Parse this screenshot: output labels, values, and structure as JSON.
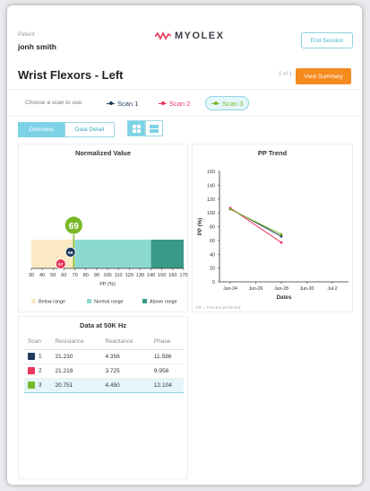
{
  "header": {
    "patient_label": "Patient",
    "patient_name": "jonh smith",
    "logo_text": "MYOLEX",
    "end_session": "End Session"
  },
  "title_row": {
    "title": "Wrist Flexors - Left",
    "pager": "1 of 1",
    "view_summary": "View Summary"
  },
  "scan_select": {
    "prompt": "Choose a scan to use:",
    "scans": [
      {
        "label": "Scan 1",
        "color": "#1f3a5f"
      },
      {
        "label": "Scan 2",
        "color": "#e8365a"
      },
      {
        "label": "Scan 3",
        "color": "#7ab829"
      }
    ],
    "selected": "Scan 3"
  },
  "tabs": {
    "overview": "Overview",
    "data_detail": "Data Detail",
    "active": "Overview"
  },
  "layout_toggle": {
    "grid_icon": "grid-icon",
    "list_icon": "list-icon",
    "active": "grid"
  },
  "colors": {
    "accent": "#7dd3e5",
    "orange": "#f58a1f",
    "below": "#fbe9c4",
    "normal": "#8bd9d0",
    "above": "#3a9a88"
  },
  "chart_data": [
    {
      "type": "bar",
      "title": "Normalized Value",
      "xlabel": "PP (%)",
      "xlim": [
        30,
        170
      ],
      "xticks": [
        30,
        40,
        50,
        60,
        70,
        80,
        90,
        100,
        110,
        120,
        130,
        140,
        150,
        160,
        170
      ],
      "ranges": [
        {
          "name": "Below range",
          "from": 30,
          "to": 70,
          "color": "#fbe9c4"
        },
        {
          "name": "Normal range",
          "from": 70,
          "to": 140,
          "color": "#8bd9d0"
        },
        {
          "name": "Above range",
          "from": 140,
          "to": 170,
          "color": "#3a9a88"
        }
      ],
      "markers": [
        {
          "scan": "Scan 1",
          "value": 66,
          "label": "66",
          "color": "#1f3a5f"
        },
        {
          "scan": "Scan 2",
          "value": 57,
          "label": "57",
          "color": "#e8365a"
        },
        {
          "scan": "Scan 3",
          "value": 69,
          "label": "69",
          "color": "#7ab829"
        }
      ],
      "legend": [
        "Below range",
        "Normal range",
        "Above range"
      ],
      "legend_position": "bottom"
    },
    {
      "type": "line",
      "title": "PP Trend",
      "xlabel": "Dates",
      "ylabel": "PP (%)",
      "ylim": [
        0,
        160
      ],
      "yticks": [
        0,
        20,
        40,
        60,
        80,
        100,
        120,
        140,
        160
      ],
      "xticks": [
        "Jun-24",
        "Jun-26",
        "Jun-28",
        "Jun-30",
        "Jul-2"
      ],
      "series": [
        {
          "name": "Scan 1",
          "color": "#1f3a5f",
          "x": [
            "Jun-24",
            "Jun-28"
          ],
          "y": [
            106,
            66
          ]
        },
        {
          "name": "Scan 2",
          "color": "#e8365a",
          "x": [
            "Jun-24",
            "Jun-28"
          ],
          "y": [
            107,
            57
          ]
        },
        {
          "name": "Scan 3",
          "color": "#7ab829",
          "x": [
            "Jun-24",
            "Jun-28"
          ],
          "y": [
            105,
            69
          ]
        }
      ],
      "footnote": "PP = Percent predicted",
      "grid": false
    }
  ],
  "data_table": {
    "title": "Data at 50K Hz",
    "columns": [
      "Scan",
      "Resistance",
      "Reactance",
      "Phase"
    ],
    "rows": [
      {
        "scan": "1",
        "color": "#1f3a5f",
        "resistance": "21.230",
        "reactance": "4.356",
        "phase": "11.596"
      },
      {
        "scan": "2",
        "color": "#e8365a",
        "resistance": "21.218",
        "reactance": "3.725",
        "phase": "9.958"
      },
      {
        "scan": "3",
        "color": "#7ab829",
        "resistance": "20.751",
        "reactance": "4.450",
        "phase": "12.104"
      }
    ],
    "highlighted_row": "3"
  }
}
